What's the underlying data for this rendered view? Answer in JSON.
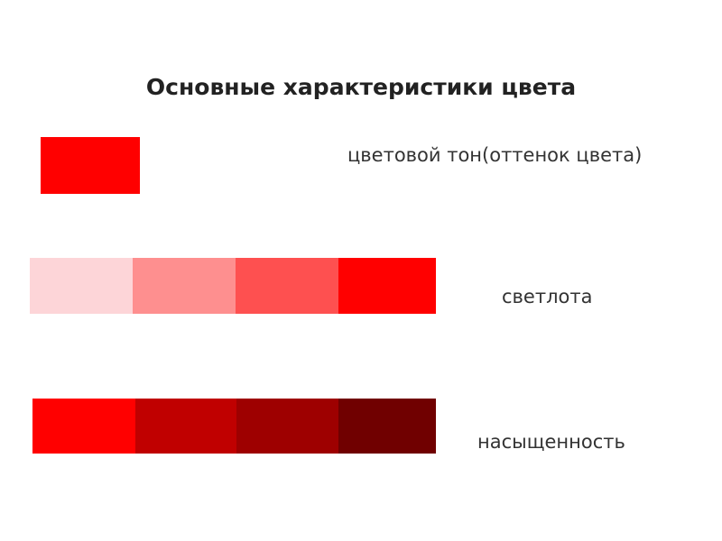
{
  "title": "Основные характеристики цвета",
  "items": [
    {
      "label": "цветовой тон(оттенок цвета)"
    },
    {
      "label": "светлота"
    },
    {
      "label": "насыщенность"
    }
  ]
}
